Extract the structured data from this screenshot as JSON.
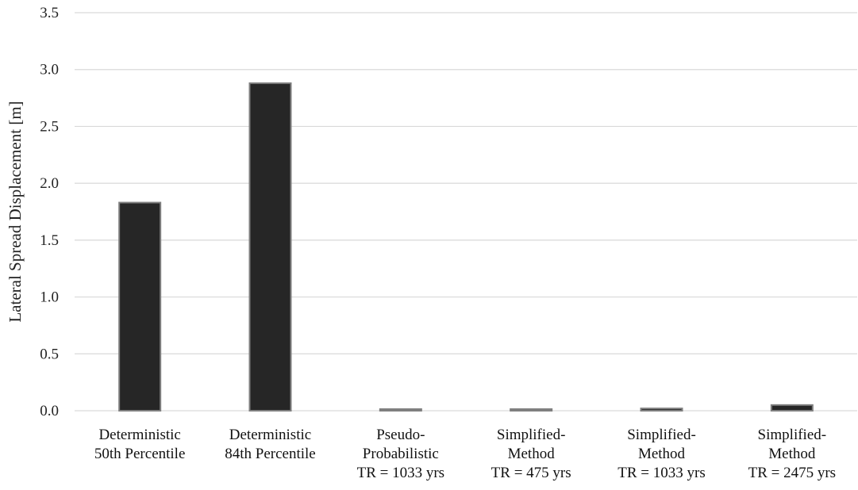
{
  "chart_data": {
    "type": "bar",
    "title": "",
    "xlabel": "",
    "ylabel": "Lateral Spread Displacement [m]",
    "ylim": [
      0,
      3.5
    ],
    "yticks": [
      "0.0",
      "0.5",
      "1.0",
      "1.5",
      "2.0",
      "2.5",
      "3.0",
      "3.5"
    ],
    "grid": true,
    "bar_color": "#262626",
    "categories": [
      [
        "Deterministic",
        "50th Percentile"
      ],
      [
        "Deterministic",
        "84th Percentile"
      ],
      [
        "Pseudo-",
        "Probabilistic",
        "TR = 1033 yrs"
      ],
      [
        "Simplified-",
        "Method",
        "TR = 475 yrs"
      ],
      [
        "Simplified-",
        "Method",
        "TR = 1033 yrs"
      ],
      [
        "Simplified-",
        "Method",
        "TR = 2475 yrs"
      ]
    ],
    "values": [
      1.83,
      2.88,
      0.01,
      0.01,
      0.02,
      0.05
    ]
  }
}
